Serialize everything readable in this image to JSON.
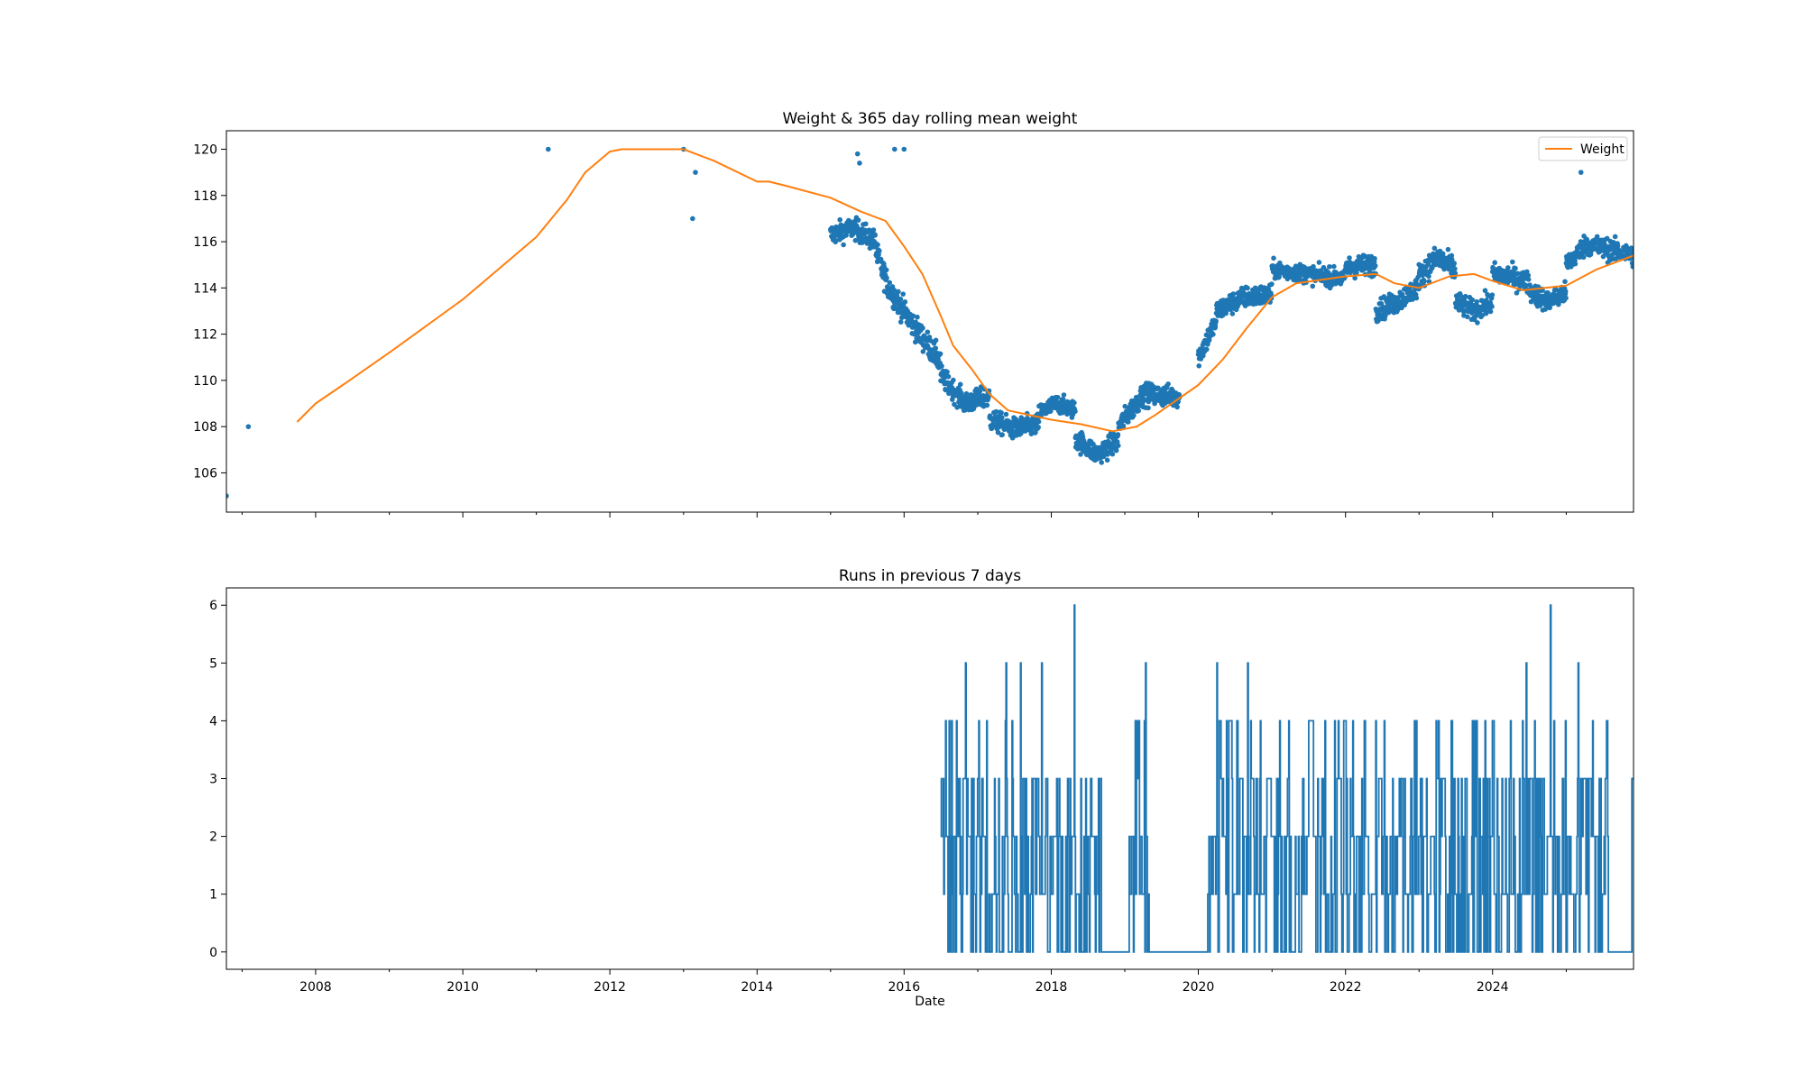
{
  "figure": {
    "xlabel": "Date"
  },
  "chart_data": [
    {
      "type": "scatter",
      "title": "Weight & 365 day rolling mean weight",
      "xlim": [
        "2006-10-15",
        "2025-12-01"
      ],
      "ylim": [
        104.3,
        120.8
      ],
      "yticks": [
        106,
        108,
        110,
        112,
        114,
        116,
        118,
        120
      ],
      "legend": {
        "entries": [
          "Weight"
        ],
        "placement": "top-right"
      },
      "grid": false,
      "series": [
        {
          "kind": "scatter",
          "color": "#1f77b4",
          "points": [
            [
              "2006-10-15",
              105.0
            ],
            [
              "2007-02-01",
              108.0
            ],
            [
              "2011-03-01",
              120.0
            ],
            [
              "2013-01-01",
              120.0
            ],
            [
              "2013-02-15",
              117.0
            ],
            [
              "2013-03-01",
              119.0
            ],
            [
              "2015-05-15",
              119.8
            ],
            [
              "2015-05-25",
              119.4
            ],
            [
              "2015-11-15",
              120.0
            ],
            [
              "2016-01-01",
              120.0
            ],
            [
              "2025-03-15",
              119.0
            ]
          ],
          "segments": [
            {
              "start": "2015-01-01",
              "end": "2015-08-15",
              "trend": [
                [
                  0,
                  116.3
                ],
                [
                  0.5,
                  116.6
                ],
                [
                  1,
                  116.0
                ]
              ],
              "noise": 0.6
            },
            {
              "start": "2015-08-15",
              "end": "2016-07-01",
              "trend": [
                [
                  0,
                  115.5
                ],
                [
                  0.2,
                  114.0
                ],
                [
                  0.6,
                  112.3
                ],
                [
                  1,
                  110.8
                ]
              ],
              "noise": 0.7
            },
            {
              "start": "2016-07-01",
              "end": "2017-03-01",
              "trend": [
                [
                  0,
                  110.2
                ],
                [
                  0.5,
                  109.0
                ],
                [
                  1,
                  109.3
                ]
              ],
              "noise": 0.6
            },
            {
              "start": "2017-03-01",
              "end": "2017-11-01",
              "trend": [
                [
                  0,
                  108.3
                ],
                [
                  0.5,
                  107.9
                ],
                [
                  1,
                  108.1
                ]
              ],
              "noise": 0.6
            },
            {
              "start": "2017-11-01",
              "end": "2018-05-01",
              "trend": [
                [
                  0,
                  108.6
                ],
                [
                  0.5,
                  109.0
                ],
                [
                  1,
                  108.7
                ]
              ],
              "noise": 0.5
            },
            {
              "start": "2018-05-01",
              "end": "2018-12-01",
              "trend": [
                [
                  0,
                  107.5
                ],
                [
                  0.5,
                  106.8
                ],
                [
                  1,
                  107.4
                ]
              ],
              "noise": 0.6
            },
            {
              "start": "2018-12-01",
              "end": "2019-10-01",
              "trend": [
                [
                  0,
                  108.0
                ],
                [
                  0.4,
                  109.4
                ],
                [
                  1,
                  109.3
                ]
              ],
              "noise": 0.6
            },
            {
              "start": "2020-01-01",
              "end": "2020-04-01",
              "trend": [
                [
                  0,
                  111.0
                ],
                [
                  1,
                  112.6
                ]
              ],
              "noise": 0.6
            },
            {
              "start": "2020-04-01",
              "end": "2021-01-01",
              "trend": [
                [
                  0,
                  113.0
                ],
                [
                  0.5,
                  113.6
                ],
                [
                  1,
                  113.7
                ]
              ],
              "noise": 0.6
            },
            {
              "start": "2021-01-01",
              "end": "2022-01-01",
              "trend": [
                [
                  0,
                  114.8
                ],
                [
                  0.5,
                  114.6
                ],
                [
                  1,
                  114.4
                ]
              ],
              "noise": 0.5
            },
            {
              "start": "2022-01-01",
              "end": "2022-06-01",
              "trend": [
                [
                  0,
                  114.9
                ],
                [
                  1,
                  115.0
                ]
              ],
              "noise": 0.6
            },
            {
              "start": "2022-06-01",
              "end": "2023-01-01",
              "trend": [
                [
                  0,
                  113.0
                ],
                [
                  0.5,
                  113.4
                ],
                [
                  1,
                  114.1
                ]
              ],
              "noise": 0.6
            },
            {
              "start": "2023-01-01",
              "end": "2023-07-01",
              "trend": [
                [
                  0,
                  114.5
                ],
                [
                  0.5,
                  115.3
                ],
                [
                  1,
                  114.8
                ]
              ],
              "noise": 0.7
            },
            {
              "start": "2023-07-01",
              "end": "2024-01-01",
              "trend": [
                [
                  0,
                  113.4
                ],
                [
                  0.5,
                  113.0
                ],
                [
                  1,
                  113.4
                ]
              ],
              "noise": 0.6
            },
            {
              "start": "2024-01-01",
              "end": "2024-07-01",
              "trend": [
                [
                  0,
                  114.6
                ],
                [
                  0.5,
                  114.5
                ],
                [
                  1,
                  114.2
                ]
              ],
              "noise": 0.6
            },
            {
              "start": "2024-07-01",
              "end": "2025-01-01",
              "trend": [
                [
                  0,
                  113.9
                ],
                [
                  0.5,
                  113.4
                ],
                [
                  1,
                  113.8
                ]
              ],
              "noise": 0.6
            },
            {
              "start": "2025-01-01",
              "end": "2025-12-01",
              "trend": [
                [
                  0,
                  115.0
                ],
                [
                  0.3,
                  115.9
                ],
                [
                  1,
                  115.4
                ]
              ],
              "noise": 0.6
            }
          ]
        },
        {
          "kind": "line",
          "name": "Weight",
          "color": "#ff7f0e",
          "points": [
            [
              "2007-10-01",
              108.2
            ],
            [
              "2008-01-01",
              109.0
            ],
            [
              "2008-06-01",
              109.9
            ],
            [
              "2009-01-01",
              111.2
            ],
            [
              "2010-01-01",
              113.5
            ],
            [
              "2011-01-01",
              116.2
            ],
            [
              "2011-06-01",
              117.8
            ],
            [
              "2011-09-01",
              119.0
            ],
            [
              "2012-01-01",
              119.9
            ],
            [
              "2012-03-01",
              120.0
            ],
            [
              "2013-01-01",
              120.0
            ],
            [
              "2013-03-01",
              119.8
            ],
            [
              "2013-06-01",
              119.5
            ],
            [
              "2014-01-01",
              118.6
            ],
            [
              "2014-03-01",
              118.6
            ],
            [
              "2014-06-01",
              118.4
            ],
            [
              "2015-01-01",
              117.9
            ],
            [
              "2015-06-01",
              117.3
            ],
            [
              "2015-10-01",
              116.9
            ],
            [
              "2016-01-01",
              115.8
            ],
            [
              "2016-04-01",
              114.6
            ],
            [
              "2016-07-01",
              112.8
            ],
            [
              "2016-09-01",
              111.5
            ],
            [
              "2016-12-01",
              110.5
            ],
            [
              "2017-03-01",
              109.4
            ],
            [
              "2017-06-01",
              108.7
            ],
            [
              "2018-01-01",
              108.3
            ],
            [
              "2018-06-01",
              108.1
            ],
            [
              "2018-11-01",
              107.8
            ],
            [
              "2019-03-01",
              108.0
            ],
            [
              "2019-06-01",
              108.5
            ],
            [
              "2020-01-01",
              109.8
            ],
            [
              "2020-05-01",
              110.9
            ],
            [
              "2020-09-01",
              112.3
            ],
            [
              "2021-01-01",
              113.6
            ],
            [
              "2021-05-01",
              114.2
            ],
            [
              "2022-01-01",
              114.5
            ],
            [
              "2022-06-01",
              114.6
            ],
            [
              "2022-09-01",
              114.2
            ],
            [
              "2023-01-01",
              114.0
            ],
            [
              "2023-06-01",
              114.5
            ],
            [
              "2023-10-01",
              114.6
            ],
            [
              "2024-01-01",
              114.3
            ],
            [
              "2024-06-01",
              113.9
            ],
            [
              "2025-01-01",
              114.1
            ],
            [
              "2025-06-01",
              114.8
            ],
            [
              "2025-12-01",
              115.4
            ]
          ]
        }
      ]
    },
    {
      "type": "line",
      "title": "Runs in previous 7 days",
      "xlim": [
        "2006-10-15",
        "2025-12-01"
      ],
      "ylim": [
        -0.3,
        6.3
      ],
      "yticks": [
        0,
        1,
        2,
        3,
        4,
        5,
        6
      ],
      "xticks": [
        "2008",
        "2010",
        "2012",
        "2014",
        "2016",
        "2018",
        "2020",
        "2022",
        "2024"
      ],
      "xlabel": "Date",
      "grid": false,
      "series": [
        {
          "kind": "step",
          "color": "#1f77b4",
          "start": "2016-07-01",
          "end": "2025-12-01",
          "zero_periods": [
            [
              "2018-09-10",
              "2019-01-15"
            ],
            [
              "2019-05-01",
              "2020-02-15"
            ],
            [
              "2025-08-01",
              "2025-11-20"
            ]
          ],
          "peaks": [
            [
              "2016-07-01",
              3
            ],
            [
              "2016-11-01",
              5
            ],
            [
              "2017-05-20",
              5
            ],
            [
              "2017-08-01",
              5
            ],
            [
              "2017-11-15",
              5
            ],
            [
              "2018-04-25",
              6
            ],
            [
              "2019-04-15",
              5
            ],
            [
              "2020-04-01",
              5
            ],
            [
              "2020-09-01",
              5
            ],
            [
              "2024-06-15",
              5
            ],
            [
              "2024-10-15",
              6
            ],
            [
              "2025-03-01",
              5
            ]
          ]
        }
      ]
    }
  ]
}
